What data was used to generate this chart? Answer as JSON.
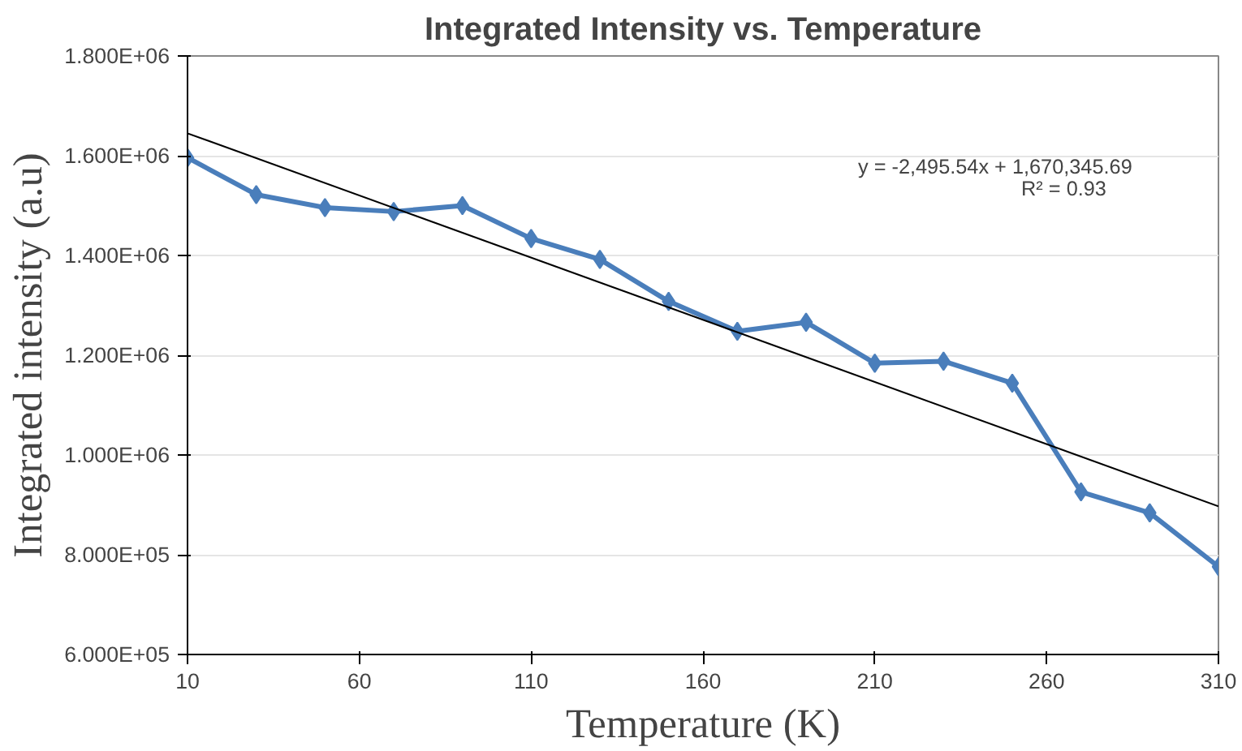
{
  "chart_data": {
    "type": "line",
    "title": "Integrated Intensity vs. Temperature",
    "xlabel": "Temperature (K)",
    "ylabel": "Integrated intensity (a.u)",
    "x": [
      10,
      30,
      50,
      70,
      90,
      110,
      130,
      150,
      170,
      190,
      210,
      230,
      250,
      270,
      290,
      310
    ],
    "series": [
      {
        "color": "#4a7ebb",
        "marker": "diamond",
        "values": [
          1596000,
          1522000,
          1496000,
          1488000,
          1500000,
          1434000,
          1392000,
          1308000,
          1248000,
          1266000,
          1184000,
          1188000,
          1144000,
          926000,
          884000,
          776000
        ]
      },
      {
        "type": "line",
        "color": "#000000",
        "marker": "none",
        "x": [
          10,
          310
        ],
        "values": [
          1645000,
          897000
        ]
      }
    ],
    "xlim": [
      10,
      310
    ],
    "xticks": [
      10,
      60,
      110,
      160,
      210,
      260,
      310
    ],
    "ylim": [
      600000,
      1800000
    ],
    "yticks": [
      {
        "value": 600000,
        "label": "6.000E+05"
      },
      {
        "value": 800000,
        "label": "8.000E+05"
      },
      {
        "value": 1000000,
        "label": "1.000E+06"
      },
      {
        "value": 1200000,
        "label": "1.200E+06"
      },
      {
        "value": 1400000,
        "label": "1.400E+06"
      },
      {
        "value": 1600000,
        "label": "1.600E+06"
      },
      {
        "value": 1800000,
        "label": "1.800E+06"
      }
    ],
    "grid": "y",
    "annotations": [
      "y = -2,495.54x + 1,670,345.69",
      "R² = 0.93"
    ]
  }
}
